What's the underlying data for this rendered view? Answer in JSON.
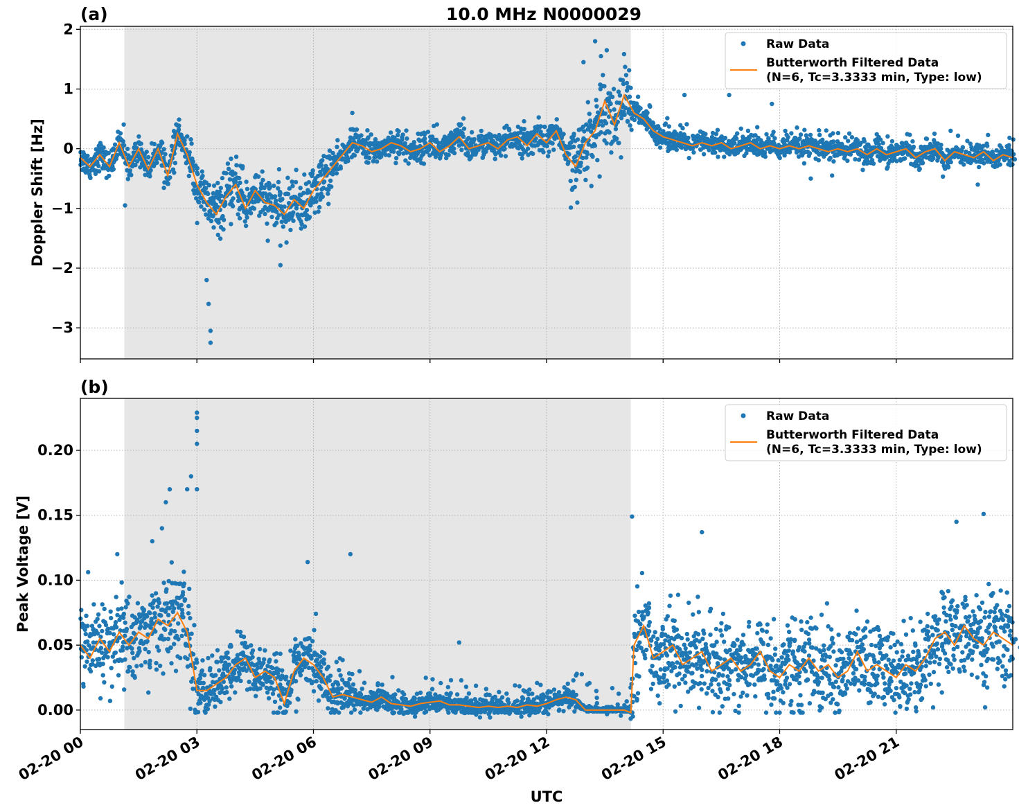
{
  "figure_title": "10.0 MHz N0000029",
  "xlabel": "UTC",
  "colors": {
    "raw": "#1f77b4",
    "filtered": "#ff7f0e",
    "shade": "#e6e6e6",
    "grid": "#b0b0b0"
  },
  "chart_data": [
    {
      "type": "scatter",
      "panel_label": "(a)",
      "title": "10.0 MHz N0000029",
      "ylabel": "Doppler Shift [Hz]",
      "xlabel": "",
      "x_unit": "hours UTC on 02-20",
      "xlim": [
        0,
        24
      ],
      "ylim": [
        -3.52,
        2.05
      ],
      "yticks": [
        2,
        1,
        0,
        -1,
        -2,
        -3
      ],
      "ytick_labels": [
        "2",
        "1",
        "0",
        "−1",
        "−2",
        "−3"
      ],
      "shaded_interval": [
        1.13,
        14.17
      ],
      "grid": true,
      "legend_position": "upper right",
      "legend": [
        "Raw Data",
        "Butterworth Filtered Data",
        "(N=6, Tc=3.3333 min, Type: low)"
      ],
      "series": [
        {
          "name": "Butterworth Filtered Data",
          "kind": "line",
          "x": [
            0,
            0.25,
            0.5,
            0.75,
            1.0,
            1.25,
            1.5,
            1.75,
            2.0,
            2.25,
            2.5,
            2.75,
            3.0,
            3.25,
            3.5,
            3.75,
            4.0,
            4.25,
            4.5,
            4.75,
            5.0,
            5.25,
            5.5,
            5.75,
            6.0,
            6.25,
            6.5,
            6.75,
            7.0,
            7.25,
            7.5,
            7.75,
            8.0,
            8.25,
            8.5,
            8.75,
            9.0,
            9.25,
            9.5,
            9.75,
            10.0,
            10.25,
            10.5,
            10.75,
            11.0,
            11.25,
            11.5,
            11.75,
            12.0,
            12.25,
            12.5,
            12.75,
            13.0,
            13.25,
            13.5,
            13.75,
            14.0,
            14.25,
            14.5,
            14.75,
            15.0,
            15.25,
            15.5,
            15.75,
            16.0,
            16.25,
            16.5,
            16.75,
            17.0,
            17.25,
            17.5,
            17.75,
            18.0,
            18.25,
            18.5,
            18.75,
            19.0,
            19.25,
            19.5,
            19.75,
            20.0,
            20.25,
            20.5,
            20.75,
            21.0,
            21.25,
            21.5,
            21.75,
            22.0,
            22.25,
            22.5,
            22.75,
            23.0,
            23.25,
            23.5,
            23.75,
            24.0
          ],
          "y": [
            -0.15,
            -0.3,
            -0.1,
            -0.3,
            0.1,
            -0.3,
            0.0,
            -0.35,
            0.0,
            -0.45,
            0.25,
            -0.1,
            -0.6,
            -0.9,
            -1.1,
            -0.8,
            -0.6,
            -1.0,
            -0.7,
            -0.9,
            -0.95,
            -1.1,
            -0.85,
            -1.0,
            -0.7,
            -0.5,
            -0.3,
            -0.1,
            0.1,
            0.05,
            -0.05,
            0.0,
            0.1,
            0.05,
            -0.05,
            0.0,
            0.1,
            -0.05,
            0.05,
            0.2,
            0.0,
            0.05,
            0.1,
            0.0,
            0.15,
            0.2,
            0.05,
            0.25,
            0.1,
            0.3,
            -0.1,
            -0.3,
            0.1,
            0.3,
            0.8,
            0.4,
            0.9,
            0.6,
            0.5,
            0.3,
            0.2,
            0.15,
            0.1,
            0.05,
            0.1,
            0.05,
            0.1,
            0.0,
            0.05,
            0.1,
            0.0,
            0.05,
            0.0,
            0.05,
            0.0,
            0.05,
            0.0,
            -0.05,
            0.0,
            -0.05,
            0.0,
            -0.1,
            0.0,
            -0.1,
            -0.05,
            0.0,
            -0.15,
            -0.05,
            0.0,
            -0.2,
            -0.05,
            -0.1,
            -0.15,
            -0.05,
            -0.2,
            -0.1,
            -0.15
          ]
        },
        {
          "name": "Raw Data",
          "kind": "points",
          "note_spread": "dense points scattered around filtered curve",
          "outliers": [
            {
              "x": 3.35,
              "y": -3.25
            },
            {
              "x": 3.35,
              "y": -3.05
            },
            {
              "x": 3.3,
              "y": -2.6
            },
            {
              "x": 3.25,
              "y": -2.2
            },
            {
              "x": 5.15,
              "y": -1.95
            },
            {
              "x": 1.15,
              "y": -0.95
            },
            {
              "x": 13.25,
              "y": 1.8
            },
            {
              "x": 13.4,
              "y": 1.55
            },
            {
              "x": 13.55,
              "y": 1.65
            },
            {
              "x": 7.0,
              "y": 0.6
            },
            {
              "x": 12.95,
              "y": 1.45
            },
            {
              "x": 16.7,
              "y": 0.9
            },
            {
              "x": 17.8,
              "y": 0.75
            },
            {
              "x": 15.55,
              "y": 0.9
            },
            {
              "x": 22.4,
              "y": 0.3
            },
            {
              "x": 23.1,
              "y": -0.6
            },
            {
              "x": 19.35,
              "y": -0.45
            },
            {
              "x": 18.8,
              "y": -0.5
            }
          ]
        }
      ]
    },
    {
      "type": "scatter",
      "panel_label": "(b)",
      "title": "",
      "ylabel": "Peak Voltage [V]",
      "xlabel": "UTC",
      "x_unit": "hours UTC on 02-20",
      "xlim": [
        0,
        24
      ],
      "ylim": [
        -0.015,
        0.24
      ],
      "yticks": [
        0.2,
        0.15,
        0.1,
        0.05,
        0.0
      ],
      "ytick_labels": [
        "0.20",
        "0.15",
        "0.10",
        "0.05",
        "0.00"
      ],
      "xticks": [
        0,
        3,
        6,
        9,
        12,
        15,
        18,
        21
      ],
      "xtick_labels": [
        "02-20 00",
        "02-20 03",
        "02-20 06",
        "02-20 09",
        "02-20 12",
        "02-20 15",
        "02-20 18",
        "02-20 21"
      ],
      "shaded_interval": [
        1.13,
        14.17
      ],
      "grid": true,
      "legend_position": "upper right",
      "legend": [
        "Raw Data",
        "Butterworth Filtered Data",
        "(N=6, Tc=3.3333 min, Type: low)"
      ],
      "series": [
        {
          "name": "Butterworth Filtered Data",
          "kind": "line",
          "x": [
            0,
            0.25,
            0.5,
            0.75,
            1.0,
            1.25,
            1.5,
            1.75,
            2.0,
            2.25,
            2.5,
            2.75,
            3.0,
            3.25,
            3.5,
            3.75,
            4.0,
            4.25,
            4.5,
            4.75,
            5.0,
            5.25,
            5.5,
            5.75,
            6.0,
            6.25,
            6.5,
            6.75,
            7.0,
            7.25,
            7.5,
            7.75,
            8.0,
            8.25,
            8.5,
            8.75,
            9.0,
            9.25,
            9.5,
            9.75,
            10.0,
            10.25,
            10.5,
            10.75,
            11.0,
            11.25,
            11.5,
            11.75,
            12.0,
            12.25,
            12.5,
            12.75,
            13.0,
            13.25,
            13.5,
            13.75,
            14.0,
            14.17,
            14.25,
            14.5,
            14.75,
            15.0,
            15.25,
            15.5,
            15.75,
            16.0,
            16.25,
            16.5,
            16.75,
            17.0,
            17.25,
            17.5,
            17.75,
            18.0,
            18.25,
            18.5,
            18.75,
            19.0,
            19.25,
            19.5,
            19.75,
            20.0,
            20.25,
            20.5,
            20.75,
            21.0,
            21.25,
            21.5,
            21.75,
            22.0,
            22.25,
            22.5,
            22.75,
            23.0,
            23.25,
            23.5,
            23.75,
            24.0
          ],
          "y": [
            0.05,
            0.04,
            0.055,
            0.045,
            0.06,
            0.05,
            0.06,
            0.055,
            0.07,
            0.065,
            0.075,
            0.06,
            0.015,
            0.015,
            0.02,
            0.025,
            0.035,
            0.04,
            0.025,
            0.03,
            0.025,
            0.005,
            0.03,
            0.04,
            0.035,
            0.025,
            0.01,
            0.012,
            0.01,
            0.008,
            0.006,
            0.01,
            0.005,
            0.004,
            0.003,
            0.005,
            0.006,
            0.007,
            0.004,
            0.004,
            0.003,
            0.002,
            0.003,
            0.002,
            0.003,
            0.002,
            0.004,
            0.003,
            0.005,
            0.008,
            0.01,
            0.008,
            0.0,
            0.0,
            0.0,
            0.0,
            0.0,
            -0.002,
            0.05,
            0.065,
            0.04,
            0.045,
            0.05,
            0.035,
            0.04,
            0.045,
            0.03,
            0.035,
            0.04,
            0.03,
            0.035,
            0.045,
            0.03,
            0.025,
            0.035,
            0.03,
            0.04,
            0.03,
            0.035,
            0.025,
            0.03,
            0.045,
            0.03,
            0.035,
            0.03,
            0.025,
            0.035,
            0.03,
            0.04,
            0.055,
            0.06,
            0.05,
            0.065,
            0.055,
            0.05,
            0.06,
            0.055,
            0.05
          ]
        },
        {
          "name": "Raw Data",
          "kind": "points",
          "note_spread": "dense points scattered around filtered curve",
          "outliers": [
            {
              "x": 3.0,
              "y": 0.229
            },
            {
              "x": 3.0,
              "y": 0.225
            },
            {
              "x": 3.0,
              "y": 0.215
            },
            {
              "x": 3.0,
              "y": 0.205
            },
            {
              "x": 3.0,
              "y": 0.17
            },
            {
              "x": 2.85,
              "y": 0.18
            },
            {
              "x": 2.75,
              "y": 0.17
            },
            {
              "x": 2.3,
              "y": 0.17
            },
            {
              "x": 2.2,
              "y": 0.16
            },
            {
              "x": 2.1,
              "y": 0.14
            },
            {
              "x": 1.85,
              "y": 0.13
            },
            {
              "x": 14.2,
              "y": 0.149
            },
            {
              "x": 5.85,
              "y": 0.114
            },
            {
              "x": 23.25,
              "y": 0.151
            },
            {
              "x": 22.55,
              "y": 0.145
            },
            {
              "x": 16.0,
              "y": 0.137
            },
            {
              "x": 9.75,
              "y": 0.052
            },
            {
              "x": 0.95,
              "y": 0.12
            },
            {
              "x": 6.95,
              "y": 0.12
            }
          ]
        }
      ]
    }
  ]
}
